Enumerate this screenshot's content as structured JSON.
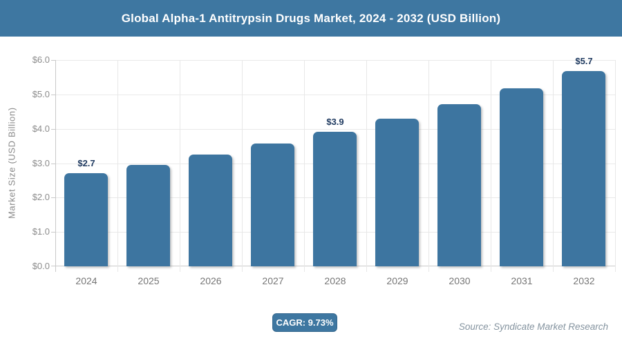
{
  "header": {
    "title": "Global Alpha-1 Antitrypsin Drugs Market, 2024 - 2032 (USD Billion)"
  },
  "chart_data": {
    "type": "bar",
    "title": "Global Alpha-1 Antitrypsin Drugs Market, 2024 - 2032 (USD Billion)",
    "categories": [
      "2024",
      "2025",
      "2026",
      "2027",
      "2028",
      "2029",
      "2030",
      "2031",
      "2032"
    ],
    "values": [
      2.7,
      2.96,
      3.25,
      3.57,
      3.91,
      4.29,
      4.71,
      5.17,
      5.67
    ],
    "bar_labels": [
      "$2.7",
      "",
      "",
      "",
      "$3.9",
      "",
      "",
      "",
      "$5.7"
    ],
    "xlabel": "",
    "ylabel": "Market Size (USD Billion)",
    "ylim": [
      0,
      6
    ],
    "y_ticks": [
      "$0.0",
      "$1.0",
      "$2.0",
      "$3.0",
      "$4.0",
      "$5.0",
      "$6.0"
    ],
    "grid": true,
    "legend": false,
    "bar_color": "#3d75a0",
    "value_label_color": "#1f3a60"
  },
  "footer": {
    "cagr_label": "CAGR: 9.73%",
    "source": "Source: Syndicate Market Research"
  },
  "colors": {
    "accent_blue": "#3e77a1",
    "grid": "#e9e9e9",
    "axis": "#c9c9c9",
    "tick_text": "#8c8c8c",
    "x_text": "#757575",
    "source_text": "#84939f"
  }
}
